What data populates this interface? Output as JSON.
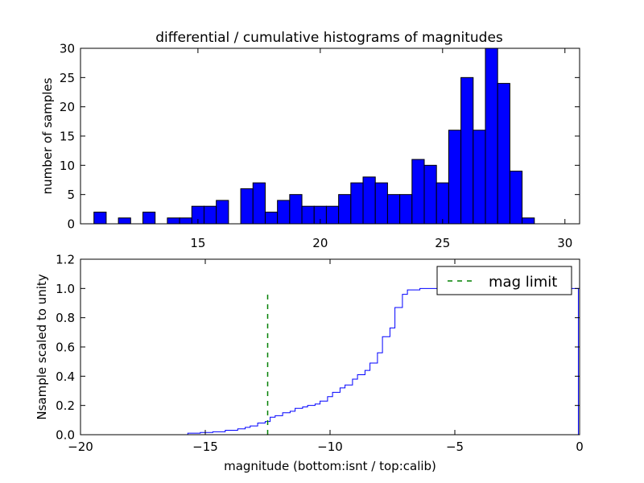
{
  "chart_data": [
    {
      "type": "bar",
      "title": "differential / cumulative histograms of magnitudes",
      "xlabel": "",
      "ylabel": "number of samples",
      "xlim": [
        10.2,
        30.6
      ],
      "ylim": [
        0,
        30
      ],
      "xticks": [
        "15",
        "20",
        "25",
        "30"
      ],
      "yticks": [
        "0",
        "5",
        "10",
        "15",
        "20",
        "25",
        "30"
      ],
      "xticks_position": "top",
      "bar_color": "#0000ff",
      "bins": [
        {
          "x0": 10.75,
          "x1": 11.25,
          "count": 2
        },
        {
          "x0": 11.25,
          "x1": 11.75,
          "count": 0
        },
        {
          "x0": 11.75,
          "x1": 12.25,
          "count": 1
        },
        {
          "x0": 12.25,
          "x1": 12.75,
          "count": 0
        },
        {
          "x0": 12.75,
          "x1": 13.25,
          "count": 2
        },
        {
          "x0": 13.25,
          "x1": 13.75,
          "count": 0
        },
        {
          "x0": 13.75,
          "x1": 14.25,
          "count": 1
        },
        {
          "x0": 14.25,
          "x1": 14.75,
          "count": 1
        },
        {
          "x0": 14.75,
          "x1": 15.25,
          "count": 3
        },
        {
          "x0": 15.25,
          "x1": 15.75,
          "count": 3
        },
        {
          "x0": 15.75,
          "x1": 16.25,
          "count": 4
        },
        {
          "x0": 16.25,
          "x1": 16.75,
          "count": 0
        },
        {
          "x0": 16.75,
          "x1": 17.25,
          "count": 6
        },
        {
          "x0": 17.25,
          "x1": 17.75,
          "count": 7
        },
        {
          "x0": 17.75,
          "x1": 18.25,
          "count": 2
        },
        {
          "x0": 18.25,
          "x1": 18.75,
          "count": 4
        },
        {
          "x0": 18.75,
          "x1": 19.25,
          "count": 5
        },
        {
          "x0": 19.25,
          "x1": 19.75,
          "count": 3
        },
        {
          "x0": 19.75,
          "x1": 20.25,
          "count": 3
        },
        {
          "x0": 20.25,
          "x1": 20.75,
          "count": 3
        },
        {
          "x0": 20.75,
          "x1": 21.25,
          "count": 5
        },
        {
          "x0": 21.25,
          "x1": 21.75,
          "count": 7
        },
        {
          "x0": 21.75,
          "x1": 22.25,
          "count": 8
        },
        {
          "x0": 22.25,
          "x1": 22.75,
          "count": 7
        },
        {
          "x0": 22.75,
          "x1": 23.25,
          "count": 5
        },
        {
          "x0": 23.25,
          "x1": 23.75,
          "count": 5
        },
        {
          "x0": 23.75,
          "x1": 24.25,
          "count": 11
        },
        {
          "x0": 24.25,
          "x1": 24.75,
          "count": 10
        },
        {
          "x0": 24.75,
          "x1": 25.25,
          "count": 7
        },
        {
          "x0": 25.25,
          "x1": 25.75,
          "count": 16
        },
        {
          "x0": 25.75,
          "x1": 26.25,
          "count": 25
        },
        {
          "x0": 26.25,
          "x1": 26.75,
          "count": 16
        },
        {
          "x0": 26.75,
          "x1": 27.25,
          "count": 30
        },
        {
          "x0": 27.25,
          "x1": 27.75,
          "count": 24
        },
        {
          "x0": 27.75,
          "x1": 28.25,
          "count": 9
        },
        {
          "x0": 28.25,
          "x1": 28.75,
          "count": 1
        }
      ]
    },
    {
      "type": "line",
      "title": "",
      "xlabel": "magnitude (bottom:isnt / top:calib)",
      "ylabel": "Nsample scaled to unity",
      "xlim": [
        -20,
        0
      ],
      "ylim": [
        0,
        1.2
      ],
      "xticks": [
        "−20",
        "−15",
        "−10",
        "−5",
        "0"
      ],
      "yticks": [
        "0.0",
        "0.2",
        "0.4",
        "0.6",
        "0.8",
        "1.0",
        "1.2"
      ],
      "legend_position": "top-right",
      "series": [
        {
          "name": "",
          "color": "#0000ff",
          "style": "steps",
          "points": [
            [
              -20,
              0
            ],
            [
              -15.7,
              0
            ],
            [
              -15.7,
              0.01
            ],
            [
              -15.2,
              0.01
            ],
            [
              -15.2,
              0.015
            ],
            [
              -14.7,
              0.015
            ],
            [
              -14.7,
              0.02
            ],
            [
              -14.2,
              0.02
            ],
            [
              -14.2,
              0.03
            ],
            [
              -13.7,
              0.03
            ],
            [
              -13.7,
              0.04
            ],
            [
              -13.4,
              0.04
            ],
            [
              -13.4,
              0.05
            ],
            [
              -13.2,
              0.05
            ],
            [
              -13.2,
              0.06
            ],
            [
              -12.9,
              0.06
            ],
            [
              -12.9,
              0.08
            ],
            [
              -12.6,
              0.08
            ],
            [
              -12.6,
              0.09
            ],
            [
              -12.4,
              0.09
            ],
            [
              -12.4,
              0.12
            ],
            [
              -12.2,
              0.12
            ],
            [
              -12.2,
              0.13
            ],
            [
              -11.9,
              0.13
            ],
            [
              -11.9,
              0.15
            ],
            [
              -11.6,
              0.15
            ],
            [
              -11.6,
              0.16
            ],
            [
              -11.4,
              0.16
            ],
            [
              -11.4,
              0.18
            ],
            [
              -11.1,
              0.18
            ],
            [
              -11.1,
              0.19
            ],
            [
              -10.9,
              0.19
            ],
            [
              -10.9,
              0.2
            ],
            [
              -10.6,
              0.2
            ],
            [
              -10.6,
              0.21
            ],
            [
              -10.4,
              0.21
            ],
            [
              -10.4,
              0.23
            ],
            [
              -10.1,
              0.23
            ],
            [
              -10.1,
              0.26
            ],
            [
              -9.9,
              0.26
            ],
            [
              -9.9,
              0.29
            ],
            [
              -9.6,
              0.29
            ],
            [
              -9.6,
              0.32
            ],
            [
              -9.4,
              0.32
            ],
            [
              -9.4,
              0.34
            ],
            [
              -9.1,
              0.34
            ],
            [
              -9.1,
              0.38
            ],
            [
              -8.9,
              0.38
            ],
            [
              -8.9,
              0.41
            ],
            [
              -8.6,
              0.41
            ],
            [
              -8.6,
              0.44
            ],
            [
              -8.4,
              0.44
            ],
            [
              -8.4,
              0.49
            ],
            [
              -8.1,
              0.49
            ],
            [
              -8.1,
              0.56
            ],
            [
              -7.9,
              0.56
            ],
            [
              -7.9,
              0.67
            ],
            [
              -7.6,
              0.67
            ],
            [
              -7.6,
              0.73
            ],
            [
              -7.4,
              0.73
            ],
            [
              -7.4,
              0.87
            ],
            [
              -7.1,
              0.87
            ],
            [
              -7.1,
              0.96
            ],
            [
              -6.9,
              0.96
            ],
            [
              -6.9,
              0.99
            ],
            [
              -6.4,
              0.99
            ],
            [
              -6.4,
              1.0
            ],
            [
              -0.05,
              1.0
            ],
            [
              -0.05,
              0
            ]
          ]
        },
        {
          "name": "mag limit",
          "color": "#008000",
          "style": "dashed",
          "points": [
            [
              -12.5,
              0
            ],
            [
              -12.5,
              0.97
            ]
          ]
        }
      ]
    }
  ]
}
